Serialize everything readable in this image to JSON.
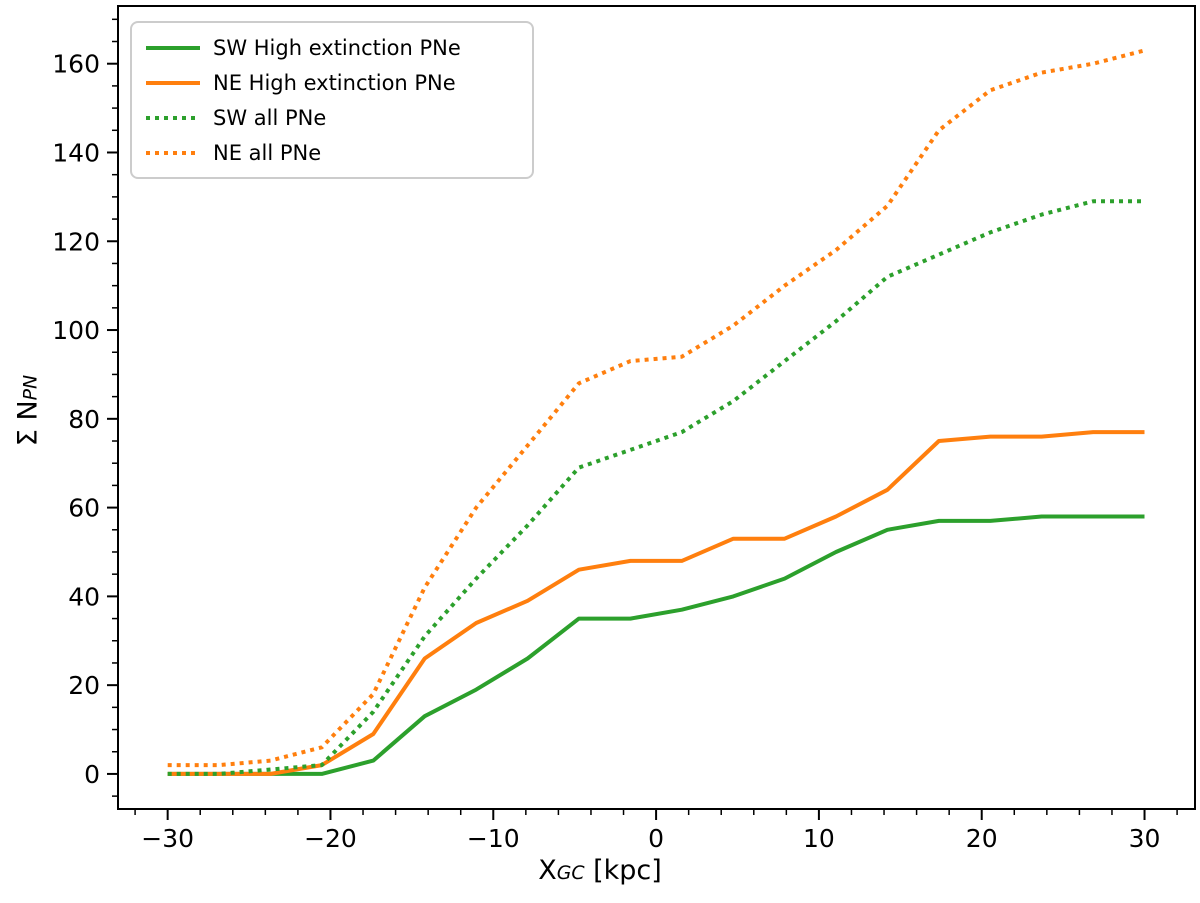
{
  "figure": {
    "background": "#ffffff"
  },
  "chart_data": {
    "type": "line",
    "title": "",
    "xlabel": {
      "base": "X",
      "sub": "GC",
      "unit": " [kpc]"
    },
    "ylabel": {
      "base": "Σ N",
      "sub": "PN"
    },
    "x": [
      -30.0,
      -26.84,
      -23.68,
      -20.53,
      -17.37,
      -14.21,
      -11.05,
      -7.89,
      -4.74,
      -1.58,
      1.58,
      4.74,
      7.89,
      11.05,
      14.21,
      17.37,
      20.53,
      23.68,
      26.84,
      30.0
    ],
    "series": [
      {
        "name": "SW High extinction PNe",
        "color": "#2ca02c",
        "style": "solid",
        "values": [
          0,
          0,
          0,
          0,
          3,
          13,
          19,
          26,
          35,
          35,
          37,
          40,
          44,
          50,
          55,
          57,
          57,
          58,
          58,
          58
        ]
      },
      {
        "name": "NE High extinction PNe",
        "color": "#ff7f0e",
        "style": "solid",
        "values": [
          0,
          0,
          0,
          2,
          9,
          26,
          34,
          39,
          46,
          48,
          48,
          53,
          53,
          58,
          64,
          75,
          76,
          76,
          77,
          77
        ]
      },
      {
        "name": "SW all PNe",
        "color": "#2ca02c",
        "style": "dotted",
        "values": [
          0,
          0,
          1,
          2,
          14,
          31,
          44,
          56,
          69,
          73,
          77,
          84,
          93,
          102,
          112,
          117,
          122,
          126,
          129,
          129
        ]
      },
      {
        "name": "NE all PNe",
        "color": "#ff7f0e",
        "style": "dotted",
        "values": [
          2,
          2,
          3,
          6,
          18,
          42,
          60,
          74,
          88,
          93,
          94,
          101,
          110,
          118,
          128,
          145,
          154,
          158,
          160,
          163
        ]
      }
    ],
    "xlim": [
      -33.05,
      33.1
    ],
    "ylim": [
      -7.9,
      173.0
    ],
    "x_ticks": {
      "major": [
        -30,
        -20,
        -10,
        0,
        10,
        20,
        30
      ],
      "labels": [
        "−30",
        "−20",
        "−10",
        "0",
        "10",
        "20",
        "30"
      ],
      "minor_step": 2
    },
    "y_ticks": {
      "major": [
        0,
        20,
        40,
        60,
        80,
        100,
        120,
        140,
        160
      ],
      "labels": [
        "0",
        "20",
        "40",
        "60",
        "80",
        "100",
        "120",
        "140",
        "160"
      ],
      "minor_step": 5
    },
    "legend_position": "upper left",
    "grid": false
  }
}
